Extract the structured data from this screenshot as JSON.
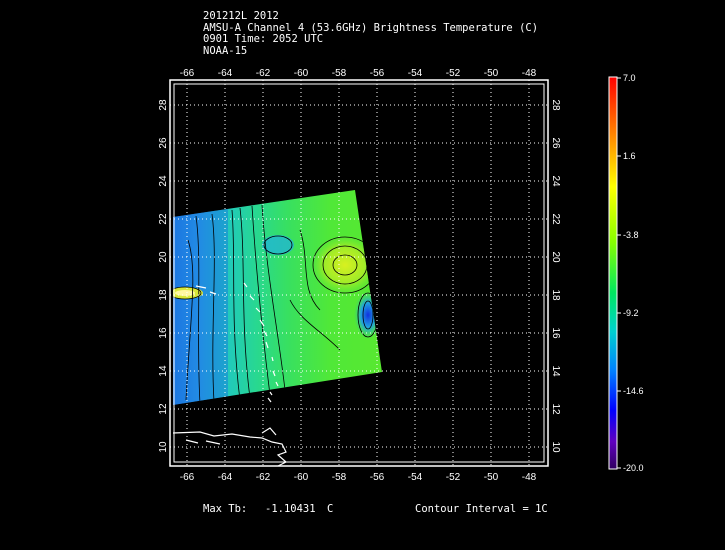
{
  "header": {
    "line1": "201212L 2012",
    "line2": "AMSU-A Channel 4 (53.6GHz) Brightness Temperature (C)",
    "line3": "0901 Time: 2052 UTC",
    "line4": "NOAA-15"
  },
  "map": {
    "lon_ticks": [
      "-66",
      "-64",
      "-62",
      "-60",
      "-58",
      "-56",
      "-54",
      "-52",
      "-50",
      "-48"
    ],
    "lat_ticks": [
      "10",
      "12",
      "14",
      "16",
      "18",
      "20",
      "22",
      "24",
      "26",
      "28"
    ],
    "lon_range": [
      -67.5,
      -47.0
    ],
    "lat_range": [
      9.0,
      29.0
    ]
  },
  "colorbar": {
    "labels": [
      "7.0",
      "1.6",
      "-3.8",
      "-9.2",
      "-14.6",
      "-20.0"
    ],
    "max": 7.0,
    "min": -20.0
  },
  "footer": {
    "max_tb_label": "Max Tb:",
    "max_tb_value": "-1.10431",
    "max_tb_unit": "C",
    "contour_interval": "Contour Interval = 1C"
  }
}
